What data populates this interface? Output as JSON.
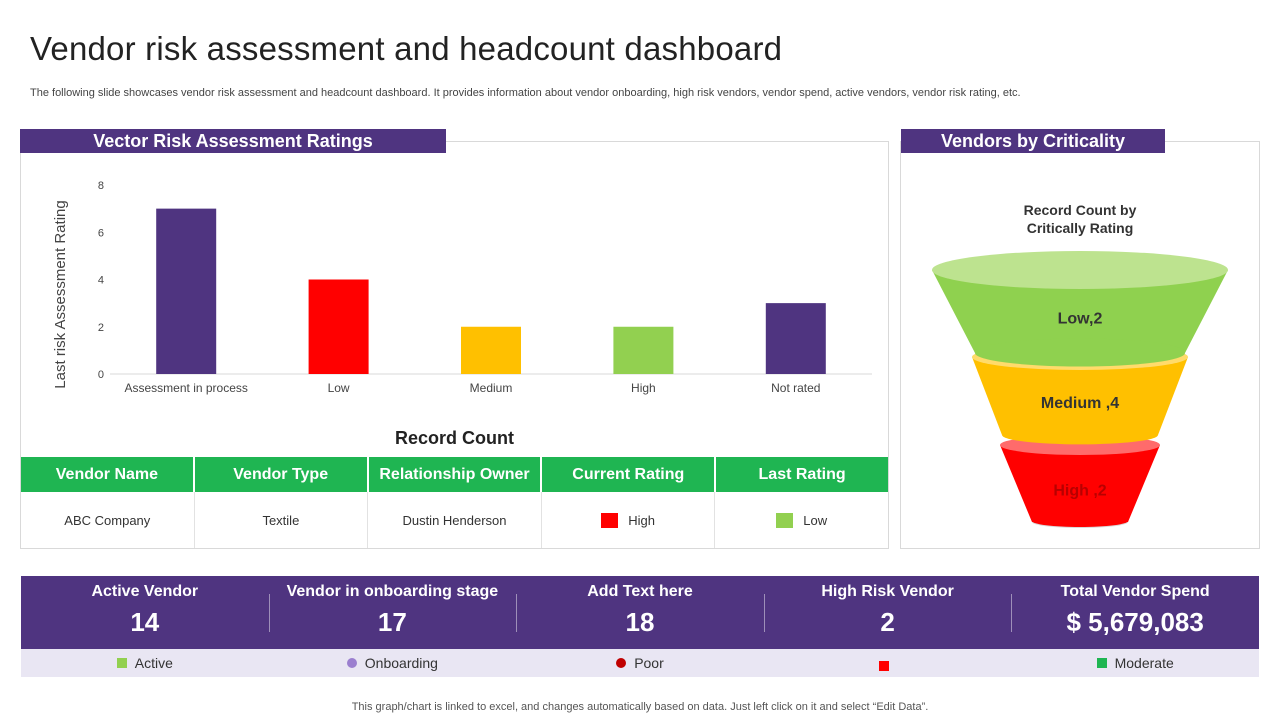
{
  "page": {
    "title": "Vendor risk assessment and headcount dashboard",
    "subtitle": "The following slide showcases vendor risk assessment and headcount dashboard. It provides information about vendor onboarding, high risk vendors, vendor spend, active vendors, vendor risk rating, etc.",
    "footer": "This graph/chart is linked to excel,  and changes automatically based on data. Just left click on it and select “Edit Data”."
  },
  "left_panel": {
    "header": "Vector Risk Assessment Ratings",
    "record_title": "Record Count"
  },
  "right_panel": {
    "header": "Vendors by Criticality",
    "funnel_title_line1": "Record Count by",
    "funnel_title_line2": "Critically Rating"
  },
  "chart_data": [
    {
      "type": "bar",
      "title": "",
      "xlabel": "",
      "ylabel": "Last risk Assessment Rating",
      "ylim": [
        0,
        8
      ],
      "yticks": [
        0,
        2,
        4,
        6,
        8
      ],
      "grid": false,
      "categories": [
        "Assessment in process",
        "Low",
        "Medium",
        "High",
        "Not rated"
      ],
      "values": [
        7,
        4,
        2,
        2,
        3
      ],
      "colors": [
        "#4f3480",
        "#ff0000",
        "#ffc000",
        "#92d050",
        "#4f3480"
      ]
    },
    {
      "type": "funnel",
      "title": "Record Count by Critically Rating",
      "segments": [
        {
          "label": "Low,2",
          "category": "Low",
          "value": 2,
          "color": "#8fd14f",
          "top_color": "#bde38f"
        },
        {
          "label": "Medium ,4",
          "category": "Medium",
          "value": 4,
          "color": "#ffc000",
          "top_color": "#ffdb6b"
        },
        {
          "label": "High ,2",
          "category": "High",
          "value": 2,
          "color": "#ff0000",
          "top_color": "#ff6b6b"
        }
      ]
    }
  ],
  "table": {
    "headers": [
      "Vendor Name",
      "Vendor Type",
      "Relationship Owner",
      "Current Rating",
      "Last Rating"
    ],
    "row": {
      "vendor_name": "ABC Company",
      "vendor_type": "Textile",
      "relationship_owner": "Dustin Henderson",
      "current_rating": "High",
      "current_rating_color": "#ff0000",
      "last_rating": "Low",
      "last_rating_color": "#92d050"
    }
  },
  "kpis": [
    {
      "label": "Active Vendor",
      "value": "14"
    },
    {
      "label": "Vendor in onboarding stage",
      "value": "17"
    },
    {
      "label": "Add Text here",
      "value": "18"
    },
    {
      "label": "High Risk  Vendor",
      "value": "2"
    },
    {
      "label": "Total Vendor Spend",
      "value": "$ 5,679,083"
    }
  ],
  "legend": [
    {
      "label": "Active",
      "color": "#92d050",
      "shape": "square"
    },
    {
      "label": "Onboarding",
      "color": "#9b7fcf",
      "shape": "circle"
    },
    {
      "label": "Poor",
      "color": "#c00000",
      "shape": "circle"
    },
    {
      "label": "",
      "color": "#ff0000",
      "shape": "square"
    },
    {
      "label": "Moderate",
      "color": "#1fb552",
      "shape": "square"
    }
  ]
}
